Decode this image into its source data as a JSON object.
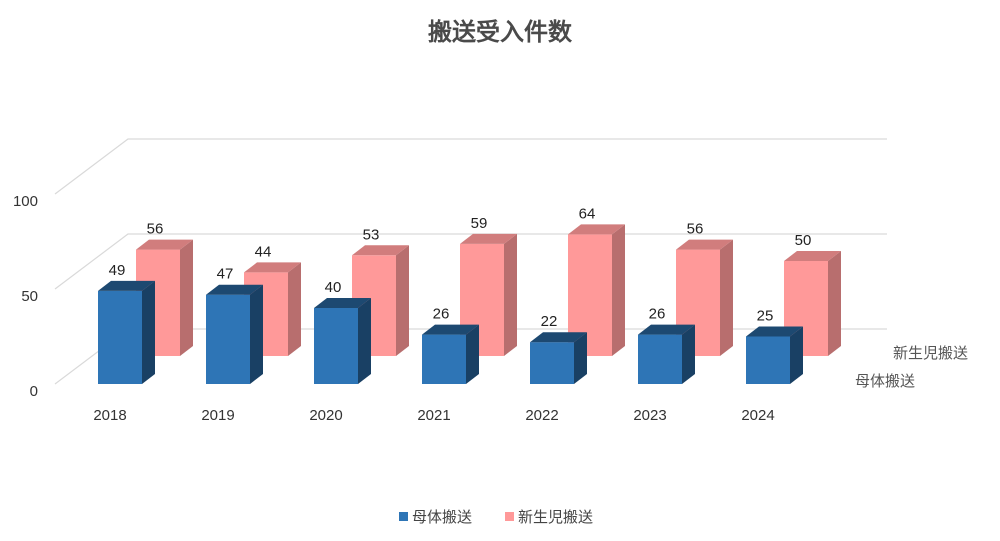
{
  "chart_data": {
    "type": "bar",
    "title": "搬送受入件数",
    "categories": [
      "2018",
      "2019",
      "2020",
      "2021",
      "2022",
      "2023",
      "2024"
    ],
    "series": [
      {
        "name": "母体搬送",
        "values": [
          49,
          47,
          40,
          26,
          22,
          26,
          25
        ],
        "color": "#2e75b6"
      },
      {
        "name": "新生児搬送",
        "values": [
          56,
          44,
          53,
          59,
          64,
          56,
          50
        ],
        "color": "#ff9999"
      }
    ],
    "y_ticks": [
      "0",
      "50",
      "100"
    ],
    "ylim": [
      0,
      100
    ],
    "grid": true,
    "legend_position": "bottom",
    "chart_style": "3d-column"
  }
}
